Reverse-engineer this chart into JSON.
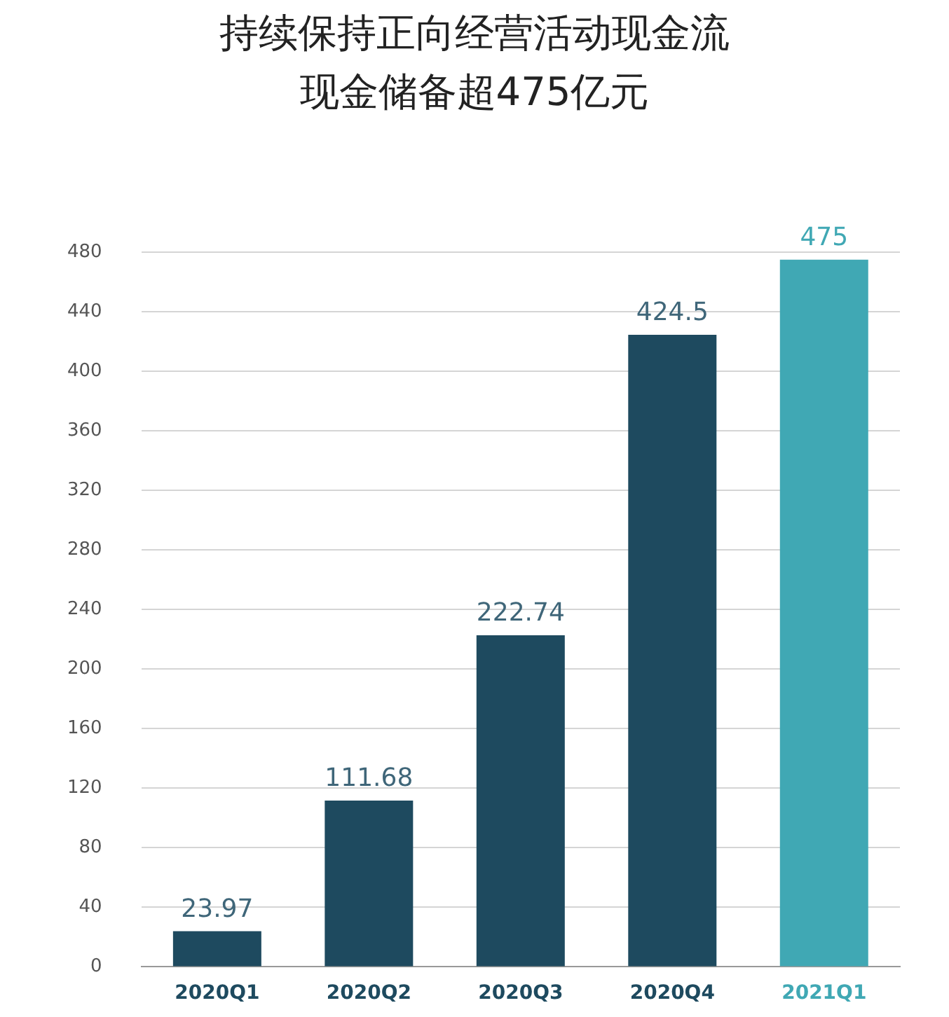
{
  "chart_data": {
    "type": "bar",
    "title": "持续保持正向经营活动现金流",
    "subtitle": "现金储备超475亿元",
    "categories": [
      "2020Q1",
      "2020Q2",
      "2020Q3",
      "2020Q4",
      "2021Q1"
    ],
    "values": [
      23.97,
      111.68,
      222.74,
      424.5,
      475
    ],
    "colors": [
      "#1e4a5f",
      "#1e4a5f",
      "#1e4a5f",
      "#1e4a5f",
      "#40a8b4"
    ],
    "ylim": [
      0,
      480
    ],
    "yticks": [
      0,
      40,
      80,
      120,
      160,
      200,
      240,
      280,
      320,
      360,
      400,
      440,
      480
    ],
    "grid": "y",
    "data_labels": true,
    "legend": false
  }
}
